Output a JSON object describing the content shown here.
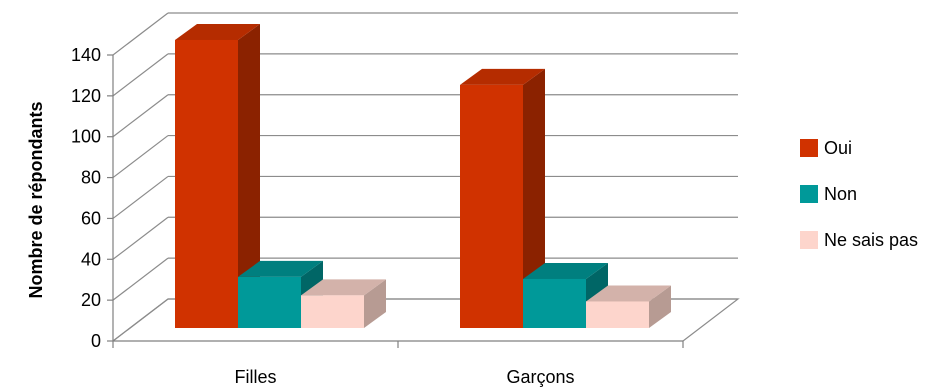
{
  "chart_data": {
    "type": "bar",
    "subtype": "3d-clustered-column",
    "categories": [
      "Filles",
      "Garçons"
    ],
    "series": [
      {
        "name": "Oui",
        "values": [
          141,
          119
        ]
      },
      {
        "name": "Non",
        "values": [
          25,
          24
        ]
      },
      {
        "name": "Ne sais pas",
        "values": [
          16,
          13
        ]
      }
    ],
    "ylabel": "Nombre de répondants",
    "xlabel": "",
    "ylim": [
      0,
      140
    ],
    "yticks": [
      0,
      20,
      40,
      60,
      80,
      100,
      120,
      140
    ],
    "grid": true,
    "legend_position": "right",
    "colors": {
      "series_front": [
        "#d03200",
        "#009999",
        "#fdd5cc"
      ],
      "series_side": [
        "#8b2200",
        "#006666",
        "#b79b93"
      ],
      "series_top": [
        "#b52c00",
        "#007f7f",
        "#d3b2aa"
      ],
      "grid": "#8c8c8c",
      "axis": "#808080"
    }
  }
}
